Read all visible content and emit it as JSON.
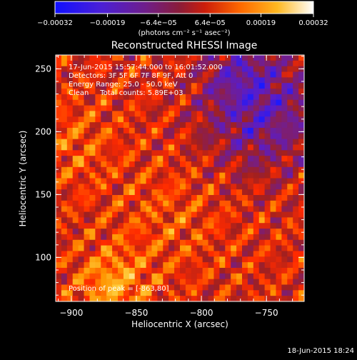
{
  "chart_data": {
    "type": "heatmap",
    "title": "Reconstructed RHESSI Image",
    "xlabel": "Heliocentric X (arcsec)",
    "ylabel": "Heliocentric Y (arcsec)",
    "xlim": [
      -912,
      -721
    ],
    "ylim": [
      65,
      261
    ],
    "x_ticks": [
      {
        "value": -900,
        "label": "−900"
      },
      {
        "value": -850,
        "label": "−850"
      },
      {
        "value": -800,
        "label": "−800"
      },
      {
        "value": -750,
        "label": "−750"
      }
    ],
    "y_ticks": [
      {
        "value": 100,
        "label": "100"
      },
      {
        "value": 150,
        "label": "150"
      },
      {
        "value": 200,
        "label": "200"
      },
      {
        "value": 250,
        "label": "250"
      }
    ],
    "colorbar": {
      "min": -0.00032,
      "max": 0.00032,
      "ticks": [
        {
          "value": -0.00032,
          "label": "−0.00032"
        },
        {
          "value": -0.00019,
          "label": "−0.00019"
        },
        {
          "value": -6.4e-05,
          "label": "−6.4e−05"
        },
        {
          "value": 6.4e-05,
          "label": "6.4e−05"
        },
        {
          "value": 0.00019,
          "label": "0.00019"
        },
        {
          "value": 0.00032,
          "label": "0.00032"
        }
      ],
      "unit_label": "(photons cm⁻² s⁻¹ asec⁻²)",
      "colors": [
        "#1a1aff",
        "#5a1dc8",
        "#7a1e7a",
        "#a02020",
        "#ff2a00",
        "#ff9400",
        "#ffd040",
        "#ffffff"
      ]
    },
    "annotations": [
      "17-Jun-2015 15:57:44.000 to 16:01:52.000",
      "Detectors: 3F 5F 6F 7F 8F 9F, Att 0",
      "Energy Range: 25.0 - 50.0 keV",
      "Clean     Total counts: 5.89E+03",
      "Position of peak = [-863,80]"
    ],
    "peak": {
      "x": -863,
      "y": 80
    },
    "grid": false
  },
  "footer": {
    "timestamp": "18-Jun-2015 18:24"
  }
}
